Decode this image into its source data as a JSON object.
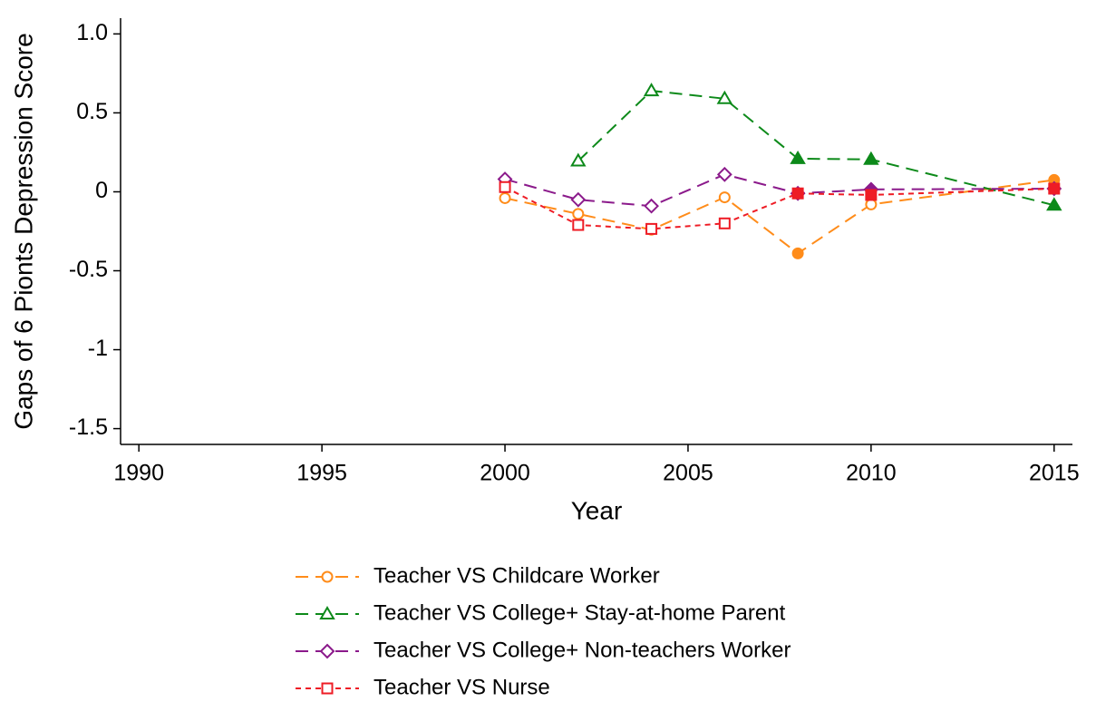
{
  "chart_data": {
    "type": "line",
    "x_label": "Year",
    "y_label": "Gaps of 6 Pionts Depression Score",
    "x": [
      2000,
      2002,
      2004,
      2006,
      2008,
      2010,
      2015
    ],
    "xlim": [
      1989.5,
      2015.5
    ],
    "xticks": [
      1990,
      1995,
      2000,
      2005,
      2010,
      2015
    ],
    "ylim": [
      -1.6,
      1.1
    ],
    "yticks": [
      {
        "value": 1,
        "label": "1.0"
      },
      0.5,
      0,
      -0.5,
      -1,
      -1.5
    ],
    "series": [
      {
        "name": "Teacher VS Childcare Worker",
        "color": "#ff8c1a",
        "marker": "circle",
        "dash": "long",
        "values": [
          -0.04,
          -0.14,
          -0.24,
          -0.035,
          -0.39,
          -0.08,
          0.075
        ],
        "marker_filled": [
          false,
          false,
          false,
          false,
          true,
          false,
          true
        ]
      },
      {
        "name": "Teacher VS College+ Stay-at-home Parent",
        "color": "#0d8a1a",
        "marker": "triangle",
        "dash": "long",
        "values": [
          null,
          0.195,
          0.64,
          0.59,
          0.21,
          0.205,
          -0.085
        ],
        "marker_filled": [
          false,
          false,
          false,
          false,
          true,
          true,
          true
        ]
      },
      {
        "name": "Teacher VS College+ Non-teachers Worker",
        "color": "#8b1a8b",
        "marker": "diamond",
        "dash": "long",
        "values": [
          0.08,
          -0.05,
          -0.09,
          0.11,
          -0.01,
          0.015,
          0.02
        ],
        "marker_filled": [
          false,
          false,
          false,
          false,
          true,
          true,
          true
        ]
      },
      {
        "name": "Teacher VS Nurse",
        "color": "#ee1c25",
        "marker": "square",
        "dash": "short",
        "values": [
          0.03,
          -0.21,
          -0.235,
          -0.2,
          -0.01,
          -0.02,
          0.02
        ],
        "marker_filled": [
          false,
          false,
          false,
          false,
          true,
          true,
          true
        ]
      }
    ]
  }
}
